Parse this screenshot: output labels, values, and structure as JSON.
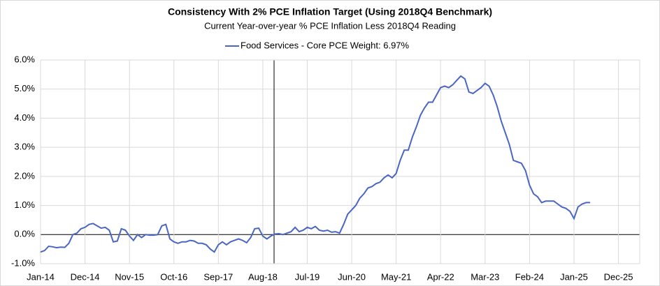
{
  "chart_data": {
    "type": "line",
    "title": "Consistency With 2% PCE Inflation Target (Using 2018Q4 Benchmark)",
    "subtitle": "Current Year-over-year % PCE Inflation Less 2018Q4 Reading",
    "categories": [
      "Jan-14",
      null,
      null,
      null,
      null,
      null,
      null,
      null,
      null,
      null,
      null,
      "Dec-14",
      null,
      null,
      null,
      null,
      null,
      null,
      null,
      null,
      null,
      null,
      "Nov-15",
      null,
      null,
      null,
      null,
      null,
      null,
      null,
      null,
      null,
      null,
      "Oct-16",
      null,
      null,
      null,
      null,
      null,
      null,
      null,
      null,
      null,
      null,
      "Sep-17",
      null,
      null,
      null,
      null,
      null,
      null,
      null,
      null,
      null,
      null,
      "Aug-18",
      null,
      null,
      null,
      null,
      null,
      null,
      null,
      null,
      null,
      null,
      "Jul-19",
      null,
      null,
      null,
      null,
      null,
      null,
      null,
      null,
      null,
      null,
      "Jun-20",
      null,
      null,
      null,
      null,
      null,
      null,
      null,
      null,
      null,
      null,
      "May-21",
      null,
      null,
      null,
      null,
      null,
      null,
      null,
      null,
      null,
      null,
      "Apr-22",
      null,
      null,
      null,
      null,
      null,
      null,
      null,
      null,
      null,
      null,
      "Mar-23",
      null,
      null,
      null,
      null,
      null,
      null,
      null,
      null,
      null,
      null,
      "Feb-24",
      null,
      null,
      null,
      null,
      null,
      null,
      null,
      null,
      null,
      null,
      "Jan-25",
      null,
      null,
      null,
      null,
      null,
      null,
      null,
      null,
      null,
      null,
      "Dec-25"
    ],
    "series": [
      {
        "name": "Food Services - Core PCE Weight: 6.97%",
        "color": "#4a66c4",
        "values": [
          -0.6,
          -0.55,
          -0.4,
          -0.42,
          -0.45,
          -0.43,
          -0.44,
          -0.3,
          0.0,
          0.05,
          0.2,
          0.25,
          0.35,
          0.38,
          0.3,
          0.22,
          0.25,
          0.15,
          -0.25,
          -0.22,
          0.2,
          0.15,
          -0.05,
          -0.2,
          0.0,
          -0.1,
          0.0,
          -0.02,
          -0.02,
          0.0,
          0.3,
          0.35,
          -0.15,
          -0.25,
          -0.3,
          -0.25,
          -0.25,
          -0.2,
          -0.22,
          -0.3,
          -0.3,
          -0.35,
          -0.5,
          -0.6,
          -0.35,
          -0.25,
          -0.35,
          -0.25,
          -0.2,
          -0.15,
          -0.2,
          -0.28,
          -0.1,
          0.2,
          0.22,
          -0.05,
          -0.15,
          -0.05,
          0.02,
          0.03,
          0.0,
          0.05,
          0.1,
          0.25,
          0.1,
          0.15,
          0.25,
          0.2,
          0.28,
          0.15,
          0.12,
          0.15,
          0.08,
          0.1,
          0.05,
          0.35,
          0.7,
          0.85,
          1.0,
          1.25,
          1.4,
          1.6,
          1.65,
          1.75,
          1.8,
          1.95,
          2.05,
          1.95,
          2.1,
          2.55,
          2.9,
          2.9,
          3.35,
          3.7,
          4.1,
          4.35,
          4.55,
          4.55,
          4.8,
          5.05,
          5.1,
          5.05,
          5.15,
          5.3,
          5.45,
          5.35,
          4.9,
          4.85,
          4.95,
          5.05,
          5.2,
          5.1,
          4.8,
          4.4,
          3.9,
          3.5,
          3.1,
          2.55,
          2.5,
          2.45,
          2.2,
          1.7,
          1.4,
          1.3,
          1.1,
          1.15,
          1.15,
          1.15,
          1.05,
          0.95,
          0.9,
          0.8,
          0.55,
          0.95,
          1.05,
          1.1,
          1.1,
          null,
          null,
          null,
          null,
          null,
          null,
          null
        ]
      }
    ],
    "ylim": [
      -1,
      6
    ],
    "yticks": [
      {
        "value": -1,
        "label": "-1.0%"
      },
      {
        "value": 0,
        "label": "0.0%"
      },
      {
        "value": 1,
        "label": "1.0%"
      },
      {
        "value": 2,
        "label": "2.0%"
      },
      {
        "value": 3,
        "label": "3.0%"
      },
      {
        "value": 4,
        "label": "4.0%"
      },
      {
        "value": 5,
        "label": "5.0%"
      },
      {
        "value": 6,
        "label": "6.0%"
      }
    ],
    "grid": true,
    "legend": "top"
  }
}
